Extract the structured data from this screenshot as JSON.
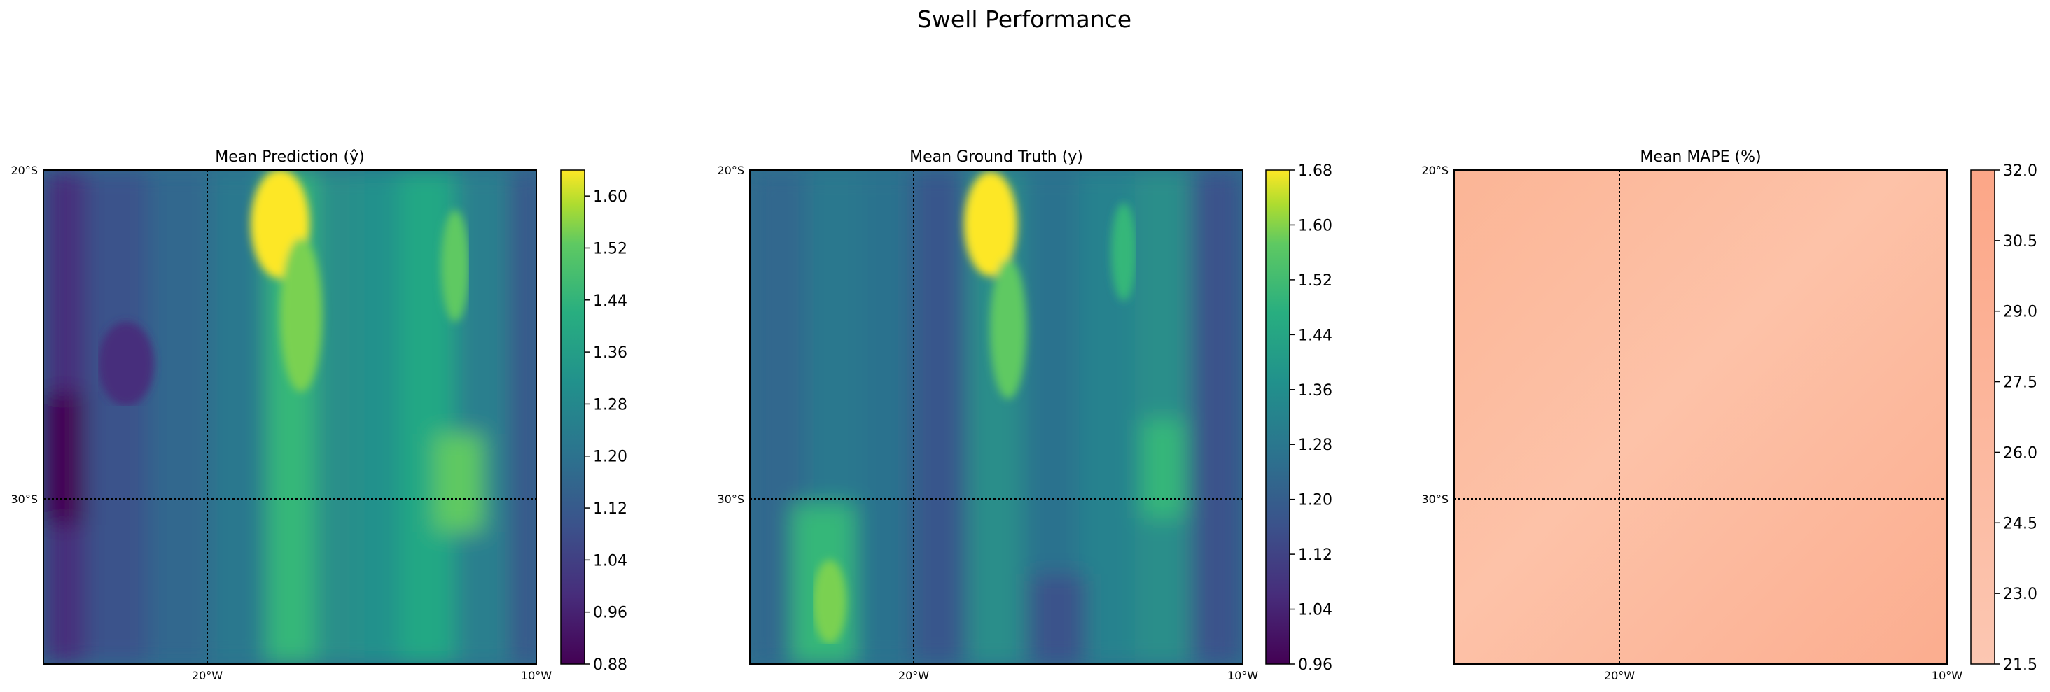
{
  "figure": {
    "title": "Swell Performance"
  },
  "chart_data": [
    {
      "type": "heatmap",
      "title": "Mean Prediction (ŷ)",
      "x_ticks": [
        "20°W",
        "10°W"
      ],
      "y_ticks": [
        "20°S",
        "30°S"
      ],
      "colormap": "viridis",
      "colorbar": {
        "min": 0.88,
        "max": 1.64,
        "ticks": [
          0.88,
          0.96,
          1.04,
          1.12,
          1.2,
          1.28,
          1.36,
          1.44,
          1.52,
          1.6
        ],
        "tick_labels": [
          "0.88",
          "0.96",
          "1.04",
          "1.12",
          "1.20",
          "1.28",
          "1.36",
          "1.44",
          "1.52",
          "1.60"
        ]
      },
      "grid": true
    },
    {
      "type": "heatmap",
      "title": "Mean Ground Truth (y)",
      "x_ticks": [
        "20°W",
        "10°W"
      ],
      "y_ticks": [
        "20°S",
        "30°S"
      ],
      "colormap": "viridis",
      "colorbar": {
        "min": 0.96,
        "max": 1.68,
        "ticks": [
          0.96,
          1.04,
          1.12,
          1.2,
          1.28,
          1.36,
          1.44,
          1.52,
          1.6,
          1.68
        ],
        "tick_labels": [
          "0.96",
          "1.04",
          "1.12",
          "1.20",
          "1.28",
          "1.36",
          "1.44",
          "1.52",
          "1.60",
          "1.68"
        ]
      },
      "grid": true
    },
    {
      "type": "heatmap",
      "title": "Mean MAPE (%)",
      "x_ticks": [
        "20°W",
        "10°W"
      ],
      "y_ticks": [
        "20°S",
        "30°S"
      ],
      "colormap": "light-salmon",
      "colors": {
        "low": "#fcc7b2",
        "high": "#fca687"
      },
      "colorbar": {
        "min": 21.5,
        "max": 32.0,
        "ticks": [
          21.5,
          23.0,
          24.5,
          26.0,
          27.5,
          29.0,
          30.5,
          32.0
        ],
        "tick_labels": [
          "21.5",
          "23.0",
          "24.5",
          "26.0",
          "27.5",
          "29.0",
          "30.5",
          "32.0"
        ]
      },
      "grid": true
    }
  ]
}
